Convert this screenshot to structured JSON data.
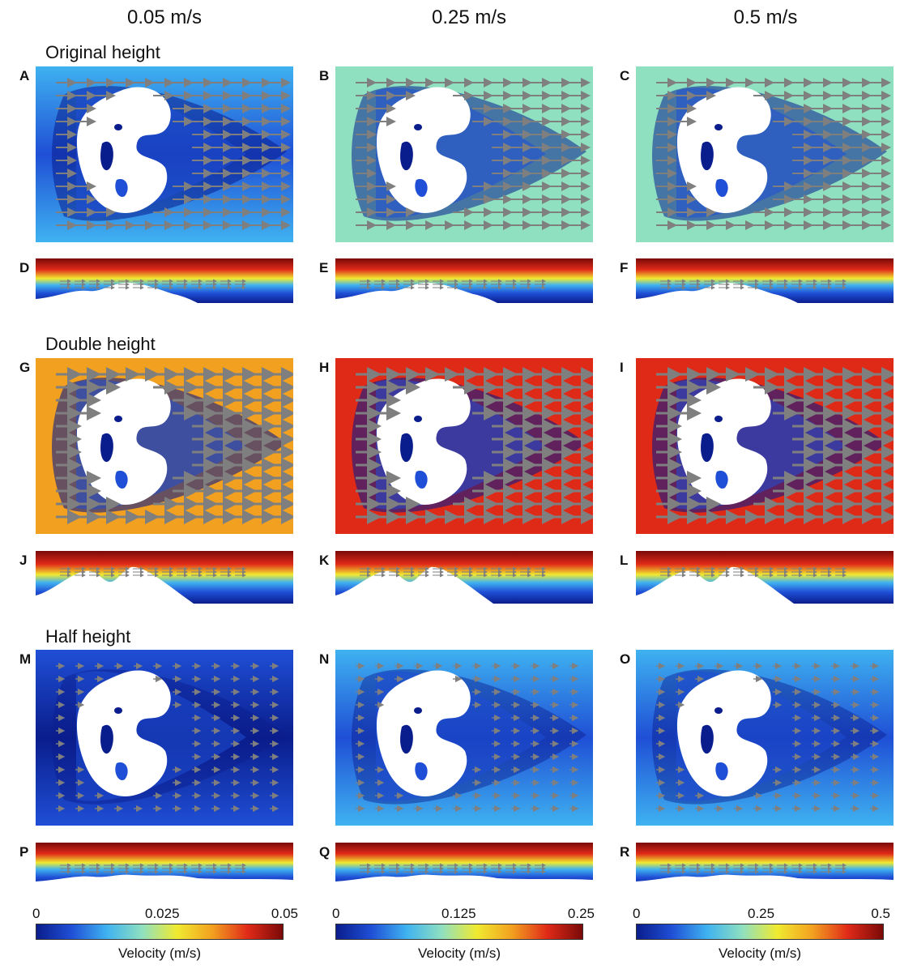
{
  "column_titles": [
    "0.05 m/s",
    "0.25 m/s",
    "0.5 m/s"
  ],
  "row_titles": [
    "Original height",
    "Double height",
    "Half height"
  ],
  "panel_letters": [
    "A",
    "B",
    "C",
    "D",
    "E",
    "F",
    "G",
    "H",
    "I",
    "J",
    "K",
    "L",
    "M",
    "N",
    "O",
    "P",
    "Q",
    "R"
  ],
  "colorbars": [
    {
      "ticks": [
        "0",
        "0.025",
        "0.05"
      ],
      "label": "Velocity (m/s)"
    },
    {
      "ticks": [
        "0",
        "0.125",
        "0.25"
      ],
      "label": "Velocity (m/s)"
    },
    {
      "ticks": [
        "0",
        "0.25",
        "0.5"
      ],
      "label": "Velocity (m/s)"
    }
  ],
  "colors": {
    "colormap": [
      "#0a1d8c",
      "#1f4fd6",
      "#3fb2f0",
      "#8fe0c0",
      "#f0ea30",
      "#f2a020",
      "#e02a18",
      "#7a0a08"
    ],
    "arrow": "#7f7f7f",
    "obstacle": "#ffffff"
  }
}
